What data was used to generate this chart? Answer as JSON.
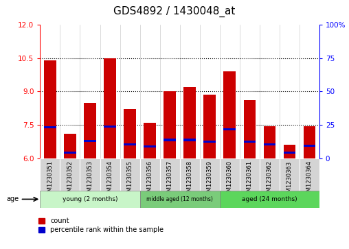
{
  "title": "GDS4892 / 1430048_at",
  "samples": [
    "GSM1230351",
    "GSM1230352",
    "GSM1230353",
    "GSM1230354",
    "GSM1230355",
    "GSM1230356",
    "GSM1230357",
    "GSM1230358",
    "GSM1230359",
    "GSM1230360",
    "GSM1230361",
    "GSM1230362",
    "GSM1230363",
    "GSM1230364"
  ],
  "bar_tops": [
    10.4,
    7.1,
    8.5,
    10.5,
    8.2,
    7.6,
    9.0,
    9.2,
    8.85,
    9.9,
    8.6,
    7.45,
    6.6,
    7.45
  ],
  "blue_vals": [
    7.4,
    6.25,
    6.78,
    7.42,
    6.62,
    6.52,
    6.82,
    6.82,
    6.75,
    7.3,
    6.75,
    6.62,
    6.25,
    6.55
  ],
  "bar_bottom": 6.0,
  "ylim_left": [
    6,
    12
  ],
  "ylim_right": [
    0,
    100
  ],
  "yticks_left": [
    6,
    7.5,
    9,
    10.5,
    12
  ],
  "yticks_right": [
    0,
    25,
    50,
    75,
    100
  ],
  "ytick_labels_right": [
    "0",
    "25",
    "50",
    "75",
    "100%"
  ],
  "group_labels": [
    "young (2 months)",
    "middle aged (12 months)",
    "aged (24 months)"
  ],
  "group_ranges": [
    [
      0,
      5
    ],
    [
      5,
      9
    ],
    [
      9,
      14
    ]
  ],
  "group_colors": [
    "#c8f5c8",
    "#7acc7a",
    "#5cd65c"
  ],
  "bar_color": "#CC0000",
  "blue_color": "#0000CC",
  "title_fontsize": 11,
  "tick_fontsize": 7.5,
  "xtick_fontsize": 6,
  "legend_count": "count",
  "legend_percentile": "percentile rank within the sample"
}
